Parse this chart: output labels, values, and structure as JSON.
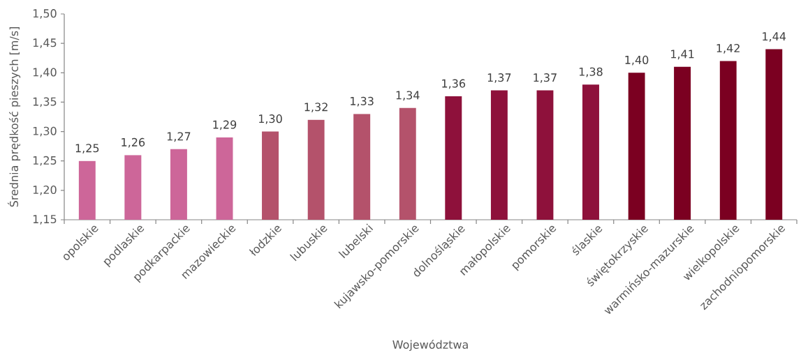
{
  "chart_data": {
    "type": "bar",
    "xlabel": "Województwa",
    "ylabel": "Średnia prędkość pieszych [m/s]",
    "categories": [
      "opolskie",
      "podlaskie",
      "podkarpackie",
      "mazowieckie",
      "łodzkie",
      "lubuskie",
      "lubelski",
      "kujawsko-pomorskie",
      "dolnośląskie",
      "małopolskie",
      "pomorskie",
      "ślaskie",
      "świętokrzyskie",
      "warmińsko-mazurskie",
      "wielkopolskie",
      "zachodniopomorskie"
    ],
    "values": [
      1.25,
      1.26,
      1.27,
      1.29,
      1.3,
      1.32,
      1.33,
      1.34,
      1.36,
      1.37,
      1.37,
      1.38,
      1.4,
      1.41,
      1.42,
      1.44
    ],
    "colors": [
      "#cd6699",
      "#cd6699",
      "#cd6699",
      "#cd6699",
      "#b4526b",
      "#b4526b",
      "#b4526b",
      "#b4526b",
      "#8e113b",
      "#8e113b",
      "#8e113b",
      "#8e113b",
      "#7b0021",
      "#7b0021",
      "#7b0021",
      "#7b0021"
    ],
    "value_labels": [
      "1,25",
      "1,26",
      "1,27",
      "1,29",
      "1,30",
      "1,32",
      "1,33",
      "1,34",
      "1,36",
      "1,37",
      "1,37",
      "1,38",
      "1,40",
      "1,41",
      "1,42",
      "1,44"
    ],
    "ylim": [
      1.15,
      1.5
    ],
    "yticks": [
      {
        "value": 1.15,
        "label": "1,15"
      },
      {
        "value": 1.2,
        "label": "1,20"
      },
      {
        "value": 1.25,
        "label": "1,25"
      },
      {
        "value": 1.3,
        "label": "1,30"
      },
      {
        "value": 1.35,
        "label": "1,35"
      },
      {
        "value": 1.4,
        "label": "1,40"
      },
      {
        "value": 1.45,
        "label": "1,45"
      },
      {
        "value": 1.5,
        "label": "1,50"
      }
    ]
  }
}
